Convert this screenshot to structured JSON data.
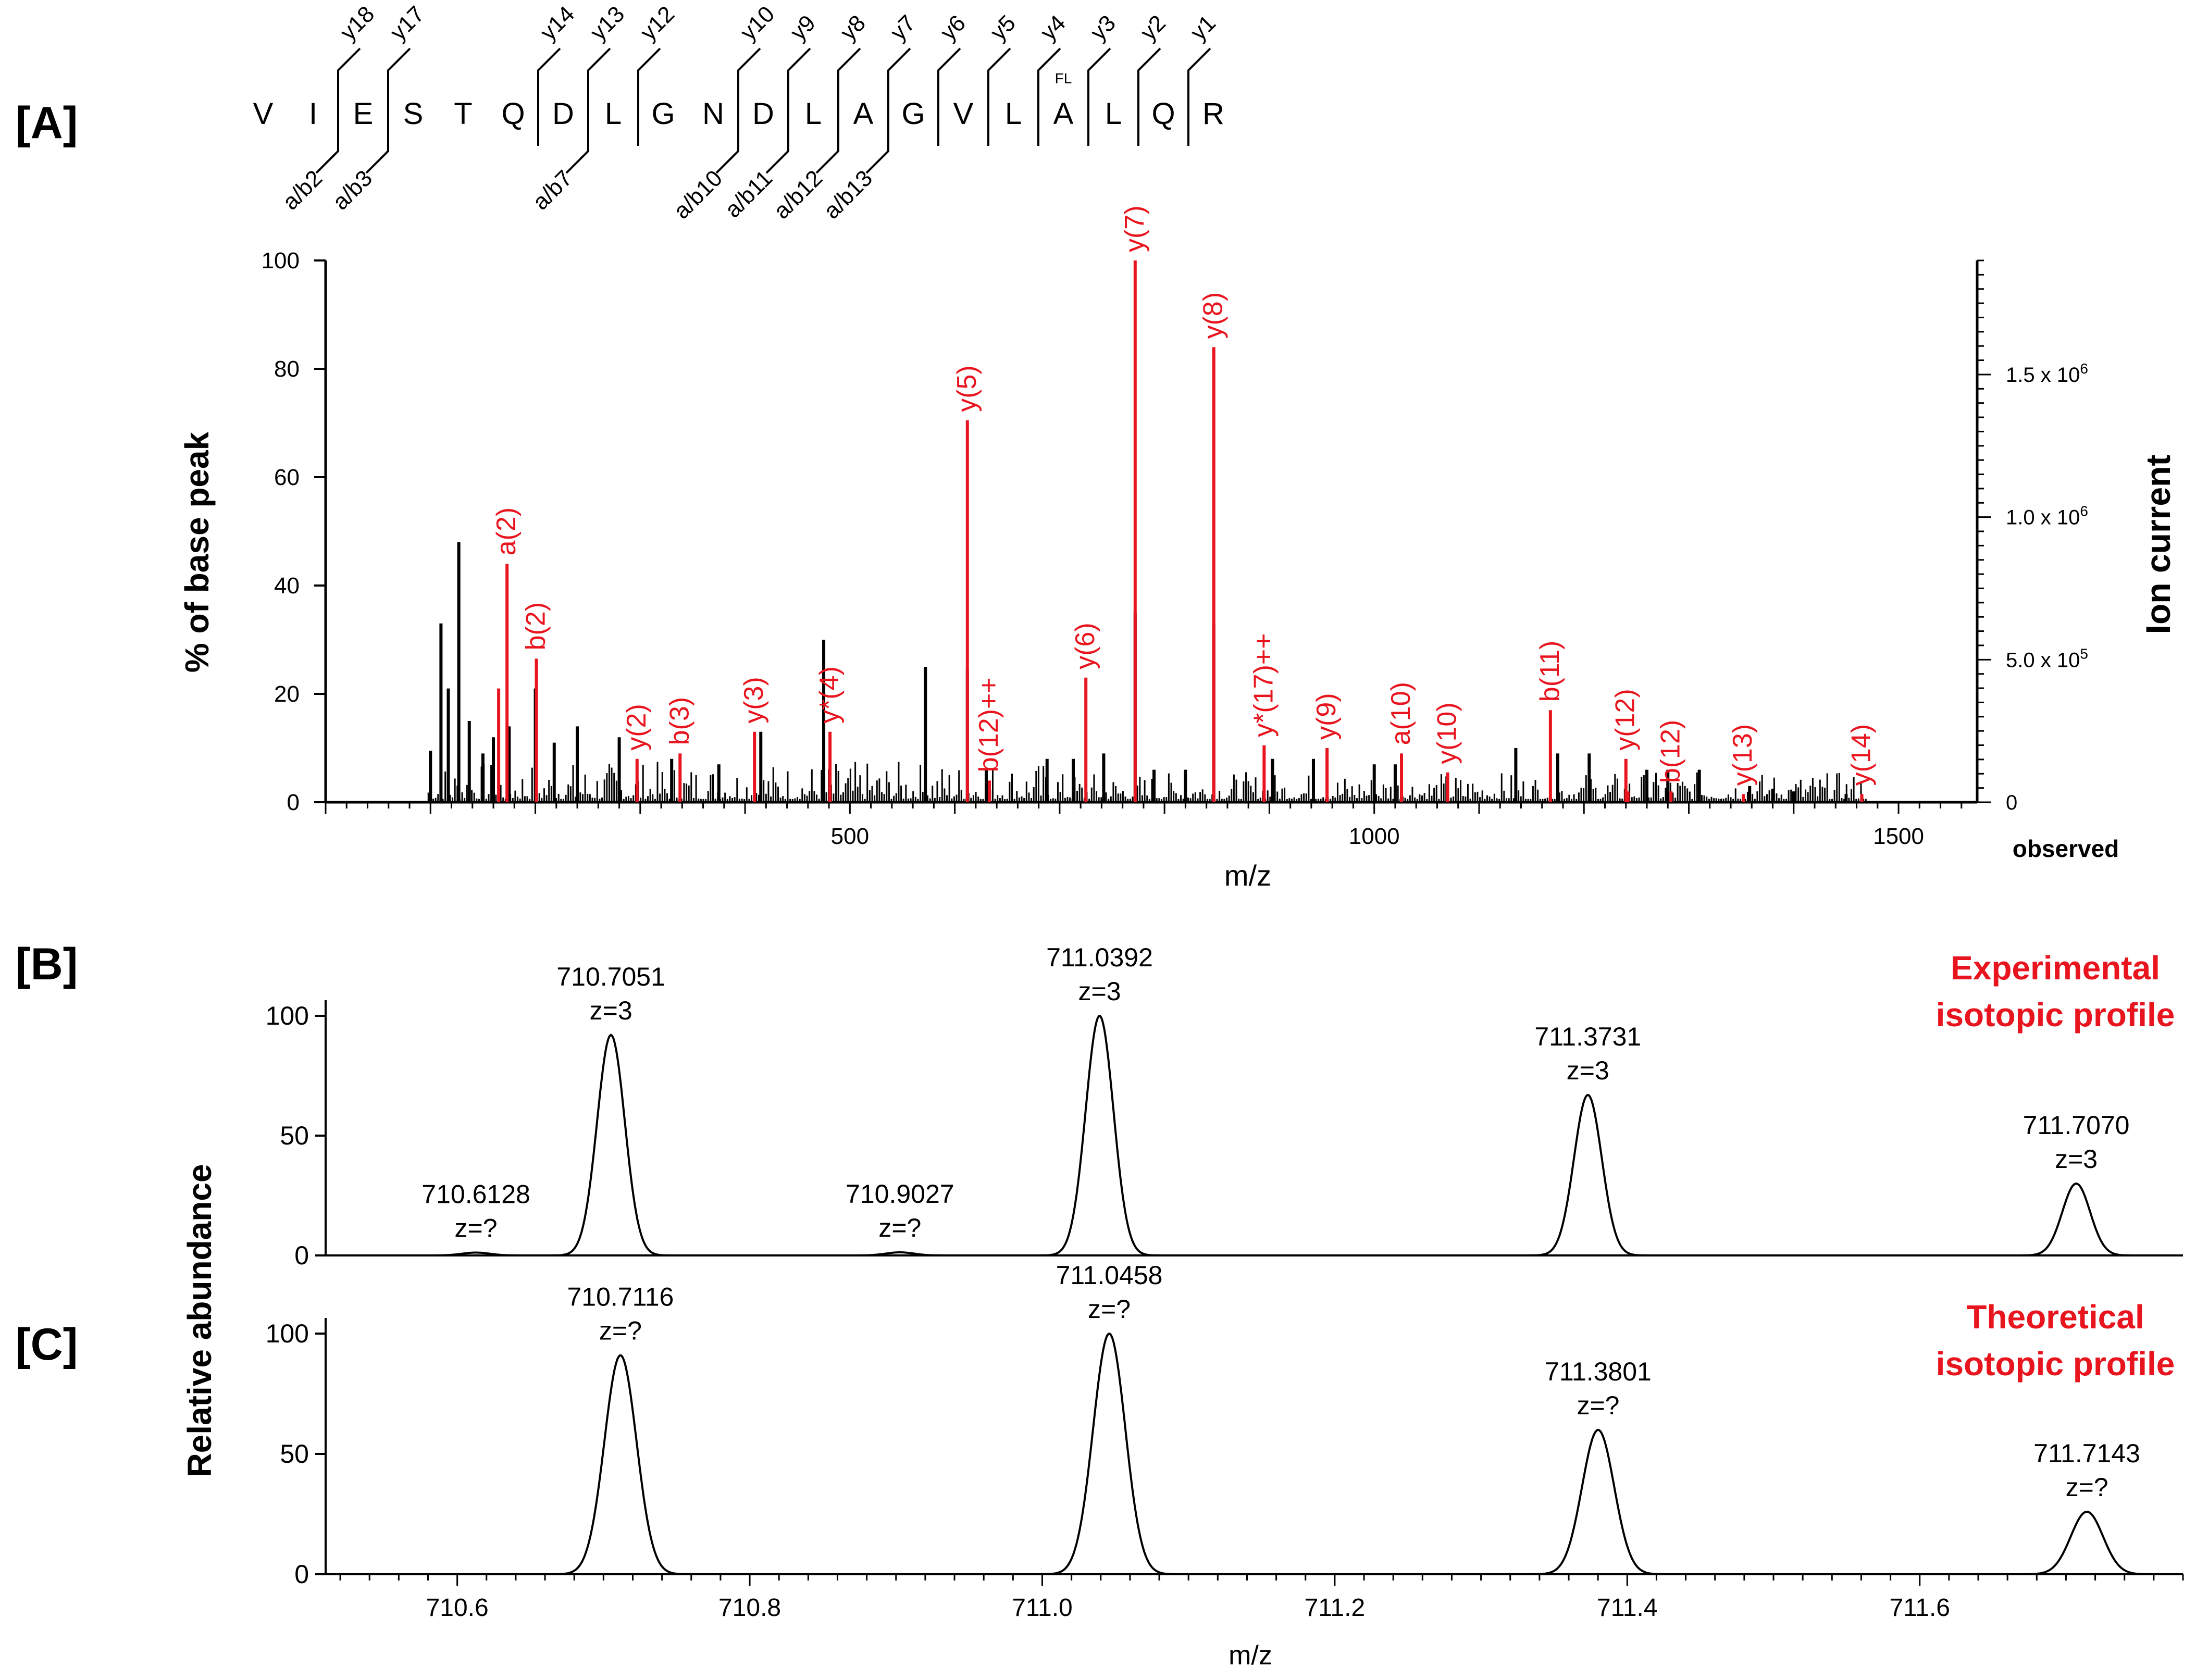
{
  "colors": {
    "black": "#000000",
    "red": "#e8141e",
    "grey": "#8c8c8c"
  },
  "panel_labels": {
    "A": "[A]",
    "B": "[B]",
    "C": "[C]"
  },
  "sequence": {
    "residues": [
      "V",
      "I",
      "E",
      "S",
      "T",
      "Q",
      "D",
      "L",
      "G",
      "N",
      "D",
      "L",
      "A",
      "G",
      "V",
      "L",
      "A",
      "L",
      "Q",
      "R"
    ],
    "y_labels": [
      "y18",
      "y17",
      "y14",
      "y13",
      "y12",
      "y10",
      "y9",
      "y8",
      "y7",
      "y6",
      "y5",
      "y4",
      "y3",
      "y2",
      "y1"
    ],
    "y_after_residue": [
      1,
      2,
      5,
      6,
      7,
      9,
      10,
      11,
      12,
      13,
      14,
      15,
      16,
      17,
      18
    ],
    "b_labels": [
      "a/b2",
      "a/b3",
      "a/b7",
      "a/b10",
      "a/b11",
      "a/b12",
      "a/b13"
    ],
    "b_after_residue": [
      1,
      2,
      6,
      9,
      10,
      11,
      12
    ],
    "fl_mark": "FL",
    "fl_residue": 16
  },
  "chart_data": [
    {
      "id": "A",
      "type": "bar",
      "title": "",
      "xlabel": "m/z",
      "ylabel": "% of base peak",
      "y2label": "Ion current",
      "xlim": [
        0,
        1575
      ],
      "ylim": [
        0,
        100
      ],
      "xticks": [
        500,
        1000,
        1500
      ],
      "yticks": [
        0,
        20,
        40,
        60,
        80,
        100
      ],
      "y2ticks": [
        0,
        500000,
        1000000,
        1500000
      ],
      "y2tick_labels": [
        "0",
        "5.0 x 10",
        "1.0 x 10",
        "1.5 x 10"
      ],
      "y2tick_exponents": [
        "",
        "5",
        "6",
        "6"
      ],
      "y2_per_percent": 19000,
      "observed_label": "observed",
      "black_peaks": [
        {
          "x": 100,
          "y": 9.5
        },
        {
          "x": 110,
          "y": 33
        },
        {
          "x": 117,
          "y": 21
        },
        {
          "x": 127,
          "y": 48
        },
        {
          "x": 137,
          "y": 15
        },
        {
          "x": 150,
          "y": 9
        },
        {
          "x": 160,
          "y": 12
        },
        {
          "x": 175,
          "y": 14
        },
        {
          "x": 200,
          "y": 21
        },
        {
          "x": 218,
          "y": 11
        },
        {
          "x": 240,
          "y": 14
        },
        {
          "x": 280,
          "y": 12
        },
        {
          "x": 330,
          "y": 8
        },
        {
          "x": 375,
          "y": 7
        },
        {
          "x": 415,
          "y": 13
        },
        {
          "x": 475,
          "y": 30
        },
        {
          "x": 572,
          "y": 25
        },
        {
          "x": 612,
          "y": 24.5
        },
        {
          "x": 630,
          "y": 6
        },
        {
          "x": 688,
          "y": 8
        },
        {
          "x": 713,
          "y": 8
        },
        {
          "x": 742,
          "y": 9
        },
        {
          "x": 772,
          "y": 35
        },
        {
          "x": 790,
          "y": 6
        },
        {
          "x": 820,
          "y": 6
        },
        {
          "x": 847,
          "y": 33
        },
        {
          "x": 903,
          "y": 8
        },
        {
          "x": 942,
          "y": 8
        },
        {
          "x": 1000,
          "y": 7
        },
        {
          "x": 1020,
          "y": 7
        },
        {
          "x": 1135,
          "y": 10
        },
        {
          "x": 1175,
          "y": 9
        },
        {
          "x": 1205,
          "y": 9
        },
        {
          "x": 1260,
          "y": 6
        },
        {
          "x": 1280,
          "y": 6
        },
        {
          "x": 1310,
          "y": 6
        },
        {
          "x": 1358,
          "y": 3
        },
        {
          "x": 1380,
          "y": 2.5
        },
        {
          "x": 1400,
          "y": 2
        },
        {
          "x": 1450,
          "y": 1.5
        }
      ],
      "noise_seed": 7,
      "red_peaks": [
        {
          "x": 165,
          "y": 21,
          "label": ""
        },
        {
          "x": 173,
          "y": 44,
          "label": "a(2)"
        },
        {
          "x": 201,
          "y": 26.5,
          "label": "b(2)"
        },
        {
          "x": 297,
          "y": 8,
          "label": "y(2)"
        },
        {
          "x": 338,
          "y": 9,
          "label": "b(3)"
        },
        {
          "x": 409,
          "y": 13,
          "label": "y(3)"
        },
        {
          "x": 481,
          "y": 13,
          "label": "y*(4)"
        },
        {
          "x": 612,
          "y": 70.5,
          "label": "y(5)"
        },
        {
          "x": 633,
          "y": 4,
          "label": "b(12)++"
        },
        {
          "x": 725,
          "y": 23,
          "label": "y(6)"
        },
        {
          "x": 772,
          "y": 100,
          "label": "y(7)"
        },
        {
          "x": 847,
          "y": 84,
          "label": "y(8)"
        },
        {
          "x": 895,
          "y": 10.5,
          "label": "y*(17)++"
        },
        {
          "x": 955,
          "y": 10,
          "label": "y(9)"
        },
        {
          "x": 1026,
          "y": 9,
          "label": "a(10)"
        },
        {
          "x": 1070,
          "y": 5.5,
          "label": "y(10)"
        },
        {
          "x": 1168,
          "y": 17,
          "label": "b(11)"
        },
        {
          "x": 1240,
          "y": 8,
          "label": "y(12)"
        },
        {
          "x": 1283,
          "y": 2,
          "label": "b(12)"
        },
        {
          "x": 1352,
          "y": 1.5,
          "label": "y(13)"
        },
        {
          "x": 1465,
          "y": 1.5,
          "label": "y(14)"
        },
        {
          "x": 1242,
          "y": 2,
          "label": ""
        }
      ]
    },
    {
      "id": "B",
      "type": "line",
      "title": "Experimental isotopic profile",
      "title_lines": [
        "Experimental",
        "isotopic profile"
      ],
      "xlabel": "",
      "ylabel": "Relative abundance",
      "xlim": [
        710.51,
        711.78
      ],
      "ylim": [
        0,
        100
      ],
      "yticks": [
        0,
        50,
        100
      ],
      "peak_width": 0.0095,
      "peaks": [
        {
          "mz": 710.6128,
          "h": 1.2,
          "label": "710.6128",
          "charge": "z=?"
        },
        {
          "mz": 710.7051,
          "h": 92,
          "label": "710.7051",
          "charge": "z=3"
        },
        {
          "mz": 710.9027,
          "h": 1.3,
          "label": "710.9027",
          "charge": "z=?"
        },
        {
          "mz": 711.0392,
          "h": 100,
          "label": "711.0392",
          "charge": "z=3"
        },
        {
          "mz": 711.3731,
          "h": 67,
          "label": "711.3731",
          "charge": "z=3"
        },
        {
          "mz": 711.707,
          "h": 30,
          "label": "711.7070",
          "charge": "z=3"
        }
      ]
    },
    {
      "id": "C",
      "type": "line",
      "title": "Theoretical isotopic profile",
      "title_lines": [
        "Theoretical",
        "isotopic profile"
      ],
      "xlabel": "m/z",
      "ylabel": "Relative abundance",
      "xlim": [
        710.51,
        711.78
      ],
      "ylim": [
        0,
        100
      ],
      "yticks": [
        0,
        50,
        100
      ],
      "xticks": [
        710.6,
        710.8,
        711.0,
        711.2,
        711.4,
        711.6
      ],
      "xtick_labels": [
        "710.6",
        "710.8",
        "711.0",
        "711.2",
        "711.4",
        "711.6"
      ],
      "peak_width": 0.011,
      "peaks": [
        {
          "mz": 710.7116,
          "h": 91,
          "label": "710.7116",
          "charge": "z=?"
        },
        {
          "mz": 711.0458,
          "h": 100,
          "label": "711.0458",
          "charge": "z=?"
        },
        {
          "mz": 711.3801,
          "h": 60,
          "label": "711.3801",
          "charge": "z=?"
        },
        {
          "mz": 711.7143,
          "h": 26,
          "label": "711.7143",
          "charge": "z=?"
        }
      ]
    }
  ]
}
